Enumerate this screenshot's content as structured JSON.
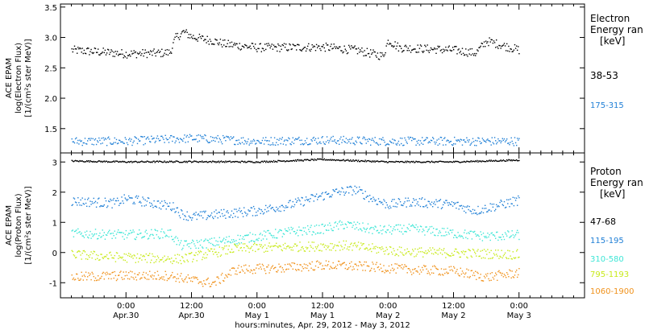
{
  "chart_data": [
    {
      "type": "scatter",
      "panel": "electron",
      "ylabel_lines": [
        "ACE EPAM",
        "log(Electron Flux)",
        "[1/(cm²s ster MeV)]"
      ],
      "ylim": [
        1.1,
        3.55
      ],
      "yticks": [
        1.5,
        2.0,
        2.5,
        3.0,
        3.5
      ],
      "ytick_labels": [
        "1.5",
        "2.0",
        "2.5",
        "3.0",
        "3.5"
      ],
      "legend_title_lines": [
        "Electron",
        "Energy ran",
        "[keV]"
      ],
      "series": [
        {
          "name": "38-53",
          "color": "#000000",
          "x": [
            -10,
            0,
            6,
            8,
            9,
            10.5,
            12,
            16,
            18,
            24,
            36,
            42,
            47,
            48,
            50,
            60,
            64,
            66,
            72
          ],
          "y": [
            2.8,
            2.74,
            2.75,
            2.76,
            3.0,
            3.1,
            3.02,
            2.95,
            2.9,
            2.84,
            2.85,
            2.8,
            2.7,
            2.96,
            2.84,
            2.8,
            2.75,
            2.95,
            2.8
          ]
        },
        {
          "name": "175-315",
          "color": "#1f7fd6",
          "x": [
            -10,
            0,
            12,
            24,
            36,
            48,
            60,
            72
          ],
          "y": [
            1.3,
            1.3,
            1.35,
            1.3,
            1.32,
            1.3,
            1.3,
            1.3
          ]
        }
      ]
    },
    {
      "type": "scatter",
      "panel": "proton",
      "ylabel_lines": [
        "ACE EPAM",
        "log(Proton Flux)",
        "[1/(cm²s ster MeV)]"
      ],
      "ylim": [
        -1.5,
        3.3
      ],
      "yticks": [
        -1,
        0,
        1,
        2,
        3
      ],
      "ytick_labels": [
        "-1",
        "0",
        "1",
        "2",
        "3"
      ],
      "legend_title_lines": [
        "Proton",
        "Energy ran",
        "[keV]"
      ],
      "series": [
        {
          "name": "47-68",
          "color": "#000000",
          "x": [
            -10,
            0,
            12,
            24,
            36,
            48,
            60,
            72
          ],
          "y": [
            3.05,
            3.02,
            3.03,
            3.02,
            3.1,
            3.02,
            3.02,
            3.08
          ]
        },
        {
          "name": "115-195",
          "color": "#1f7fd6",
          "x": [
            -10,
            -2,
            0,
            5,
            8,
            9,
            10,
            12,
            18,
            24,
            30,
            34,
            38,
            42,
            45,
            48,
            52,
            60,
            64,
            72
          ],
          "y": [
            1.72,
            1.65,
            1.8,
            1.65,
            1.55,
            1.5,
            1.3,
            1.2,
            1.3,
            1.4,
            1.6,
            1.8,
            2.0,
            2.1,
            1.8,
            1.6,
            1.7,
            1.6,
            1.4,
            1.75
          ]
        },
        {
          "name": "310-580",
          "color": "#3ee6d6",
          "x": [
            -10,
            0,
            8,
            10,
            16,
            24,
            30,
            36,
            40,
            46,
            52,
            60,
            66,
            72
          ],
          "y": [
            0.65,
            0.6,
            0.65,
            0.25,
            0.35,
            0.55,
            0.7,
            0.8,
            0.95,
            0.75,
            0.8,
            0.65,
            0.55,
            0.6
          ]
        },
        {
          "name": "795-1193",
          "color": "#c8ea1a",
          "x": [
            -10,
            0,
            10,
            20,
            30,
            40,
            50,
            60,
            72
          ],
          "y": [
            -0.05,
            -0.15,
            -0.2,
            0.15,
            0.2,
            0.25,
            0.05,
            0.0,
            -0.05
          ]
        },
        {
          "name": "1060-1900",
          "color": "#f0921c",
          "x": [
            -10,
            0,
            8,
            12,
            16,
            20,
            28,
            36,
            44,
            52,
            60,
            66,
            72
          ],
          "y": [
            -0.8,
            -0.75,
            -0.75,
            -0.9,
            -1.0,
            -0.55,
            -0.5,
            -0.4,
            -0.45,
            -0.55,
            -0.6,
            -0.8,
            -0.65
          ]
        }
      ]
    }
  ],
  "x_axis": {
    "xlim": [
      -12,
      84
    ],
    "tick_hours": [
      0,
      12,
      24,
      36,
      48,
      60,
      72
    ],
    "tick_labels_top": [
      "0:00",
      "12:00",
      "0:00",
      "12:00",
      "0:00",
      "12:00",
      "0:00"
    ],
    "tick_labels_bottom": [
      "Apr.30",
      "Apr.30",
      "May 1",
      "May 1",
      "May 2",
      "May 2",
      "May 3"
    ],
    "xlabel": "hours:minutes, Apr. 29, 2012 - May 3, 2012"
  }
}
